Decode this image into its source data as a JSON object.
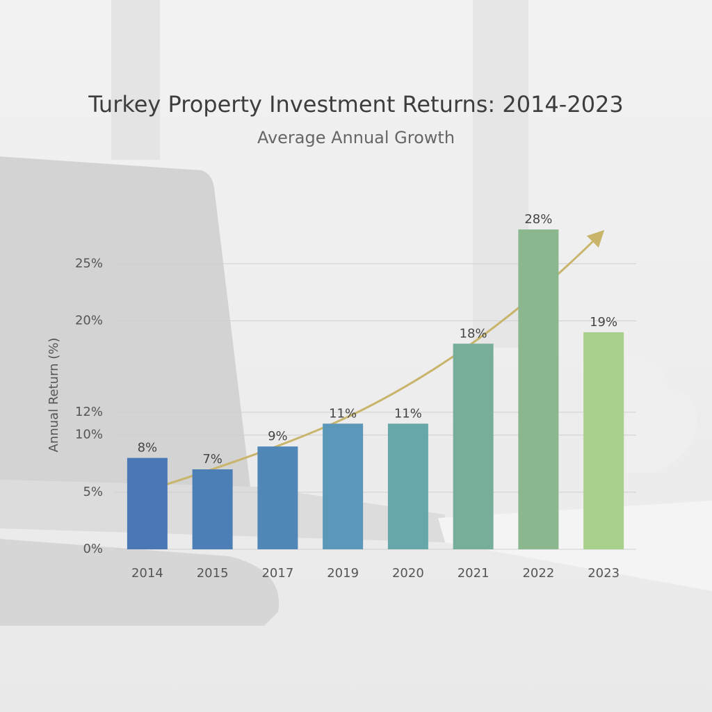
{
  "chart_data": {
    "type": "bar",
    "title": "Turkey Property Investment Returns: 2014-2023",
    "subtitle": "Average Annual Growth",
    "y_label": "Annual Return (%)",
    "categories": [
      "2014",
      "2015",
      "2017",
      "2019",
      "2020",
      "2021",
      "2022",
      "2023"
    ],
    "values": [
      8,
      7,
      9,
      11,
      11,
      18,
      28,
      19
    ],
    "value_labels": [
      "8%",
      "7%",
      "9%",
      "11%",
      "11%",
      "18%",
      "28%",
      "19%"
    ],
    "colors": [
      "#4a78b4",
      "#4c7fb6",
      "#5087b7",
      "#5b97b8",
      "#67a7aa",
      "#77ae9a",
      "#8bb78e",
      "#a9d08a"
    ],
    "ylim": [
      0,
      28
    ],
    "yticks": [
      {
        "value": 0,
        "label": "0%"
      },
      {
        "value": 5,
        "label": "5%"
      },
      {
        "value": 10,
        "label": "10%"
      },
      {
        "value": 12,
        "label": "12%"
      },
      {
        "value": 20,
        "label": "20%"
      },
      {
        "value": 25,
        "label": "25%"
      }
    ],
    "grid": true
  }
}
